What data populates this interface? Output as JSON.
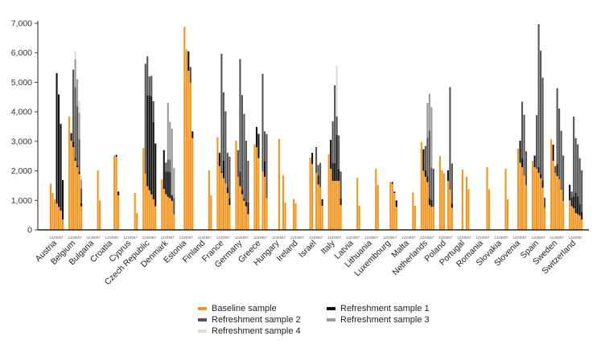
{
  "chart_data": {
    "type": "bar",
    "stacked": true,
    "title": "",
    "xlabel": "",
    "ylabel": "",
    "ylim": [
      0,
      7000
    ],
    "yticks": [
      0,
      1000,
      2000,
      3000,
      4000,
      5000,
      6000,
      7000
    ],
    "ytick_labels": [
      "0",
      "1,000",
      "2,000",
      "3,000",
      "4,000",
      "5,000",
      "6,000",
      "7,000"
    ],
    "grid": false,
    "legend_position": "bottom",
    "wave_labels": [
      "1",
      "2",
      "3",
      "4",
      "5",
      "6",
      "7"
    ],
    "series": [
      {
        "name": "Baseline sample",
        "color": "#f7941d"
      },
      {
        "name": "Refreshment sample 1",
        "color": "#111111"
      },
      {
        "name": "Refreshment sample 2",
        "color": "#555555"
      },
      {
        "name": "Refreshment sample 3",
        "color": "#9a9a9a"
      },
      {
        "name": "Refreshment sample 4",
        "color": "#dcdcdc"
      }
    ],
    "countries": [
      {
        "name": "Austria",
        "waves": [
          [
            1570
          ],
          [
            1250
          ],
          [
            1030
          ],
          [
            890,
            4420
          ],
          [
            780,
            3810
          ],
          [
            650,
            2940
          ],
          [
            350,
            1340
          ]
        ]
      },
      {
        "name": "Belgium",
        "waves": [
          [
            3840
          ],
          [
            3020,
            260
          ],
          [
            2800,
            200,
            2430
          ],
          [
            2340,
            100,
            2400,
            950,
            275
          ],
          [
            2120,
            60,
            2000,
            930
          ],
          [
            1890,
            80,
            1100,
            900,
            400
          ],
          [
            800,
            100,
            500,
            300,
            150
          ]
        ]
      },
      {
        "name": "Bulgaria",
        "waves": [
          null,
          null,
          null,
          null,
          null,
          [
            2020
          ],
          [
            1000
          ]
        ]
      },
      {
        "name": "Croatia",
        "waves": [
          null,
          null,
          null,
          null,
          [
            2520
          ],
          [
            2480,
            60
          ],
          [
            1170,
            130
          ]
        ]
      },
      {
        "name": "Cyprus",
        "waves": [
          null,
          null,
          null,
          null,
          null,
          [
            1250
          ],
          [
            570
          ]
        ]
      },
      {
        "name": "Czech Republic",
        "waves": [
          [
            2770
          ],
          [
            1900,
            0,
            3730
          ],
          [
            1480,
            3080,
            1320
          ],
          [
            1340,
            3220,
            640
          ],
          [
            1200,
            3320,
            700
          ],
          [
            1030,
            2630,
            700
          ],
          [
            800,
            2130
          ]
        ]
      },
      {
        "name": "Denmark",
        "waves": [
          [
            1710
          ],
          [
            1390,
            1310
          ],
          [
            1210,
            770,
            300
          ],
          [
            1120,
            860,
            410,
            1910
          ],
          [
            1070,
            900,
            400,
            1290
          ],
          [
            980,
            200,
            0,
            2250
          ],
          [
            530,
            0,
            550,
            1020
          ]
        ]
      },
      {
        "name": "Estonia",
        "waves": [
          null,
          null,
          [
            6880
          ],
          [
            6110
          ],
          [
            5390,
            660
          ],
          [
            4980,
            0,
            540
          ],
          [
            3110,
            230
          ]
        ]
      },
      {
        "name": "Finland",
        "waves": [
          null,
          null,
          null,
          null,
          null,
          [
            2020
          ],
          [
            1170
          ]
        ]
      },
      {
        "name": "France",
        "waves": [
          [
            3140
          ],
          [
            2160,
            450
          ],
          [
            1930,
            50,
            3990
          ],
          [
            1750,
            600,
            2310
          ],
          [
            1570,
            0,
            2450
          ],
          [
            1250,
            180,
            1180
          ],
          [
            840,
            230,
            1410
          ]
        ]
      },
      {
        "name": "Germany",
        "waves": [
          [
            3020
          ],
          [
            1800,
            0,
            900
          ],
          [
            1480,
            500,
            3810
          ],
          [
            1210,
            140,
            3220
          ],
          [
            980,
            100,
            2850
          ],
          [
            800,
            140,
            2080
          ],
          [
            530,
            400,
            1410
          ]
        ]
      },
      {
        "name": "Greece",
        "waves": [
          [
            2900
          ],
          [
            2800,
            690
          ],
          [
            2430,
            820
          ],
          null,
          [
            1980,
            0,
            3310
          ],
          [
            1800,
            530,
            1010
          ],
          [
            1070,
            0,
            2180
          ]
        ]
      },
      {
        "name": "Hungary",
        "waves": [
          null,
          null,
          null,
          [
            3080
          ],
          null,
          [
            1850
          ],
          [
            930
          ]
        ]
      },
      {
        "name": "Ireland",
        "waves": [
          null,
          [
            1050
          ],
          [
            900
          ],
          null,
          null,
          null,
          null
        ]
      },
      {
        "name": "Israel",
        "waves": [
          [
            2450
          ],
          [
            2230,
            380
          ],
          null,
          [
            1930,
            0,
            880
          ],
          [
            1540,
            300,
            360
          ],
          [
            1450,
            0,
            820
          ],
          [
            820,
            220
          ]
        ]
      },
      {
        "name": "Italy",
        "waves": [
          [
            2570
          ],
          [
            2070,
            980
          ],
          [
            1660,
            600,
            1420
          ],
          [
            1660,
            600,
            2640
          ],
          [
            1660,
            1560,
            620,
            0,
            1730
          ],
          [
            1660,
            400,
            1140
          ],
          [
            840,
            230,
            910
          ]
        ]
      },
      {
        "name": "Latvia",
        "waves": [
          null,
          null,
          null,
          null,
          null,
          [
            1760
          ],
          [
            820
          ]
        ]
      },
      {
        "name": "Lithuania",
        "waves": [
          null,
          null,
          null,
          null,
          null,
          [
            2070
          ],
          [
            1530
          ]
        ]
      },
      {
        "name": "Luxembourg",
        "waves": [
          null,
          null,
          null,
          [
            1620
          ],
          [
            1570,
            50
          ],
          [
            1250,
            50
          ],
          [
            780,
            220
          ]
        ]
      },
      {
        "name": "Malta",
        "waves": [
          null,
          null,
          null,
          null,
          null,
          [
            1270
          ],
          [
            820
          ]
        ]
      },
      {
        "name": "Netherlands",
        "waves": [
          [
            2980
          ],
          [
            2000,
            730
          ],
          [
            1800,
            220,
            820
          ],
          [
            1620,
            200,
            1300,
            1180
          ],
          [
            840,
            230,
            2300,
            1240
          ],
          [
            780,
            230,
            1100,
            2050
          ],
          [
            780,
            0,
            1290
          ]
        ]
      },
      {
        "name": "Poland",
        "waves": [
          [
            2500
          ],
          [
            2020
          ],
          [
            1920
          ],
          null,
          [
            1660,
            360
          ],
          [
            1360,
            0,
            3480
          ],
          [
            750,
            140,
            1360
          ]
        ]
      },
      {
        "name": "Portugal",
        "waves": [
          null,
          null,
          [
            2040
          ],
          null,
          [
            1800
          ],
          [
            1380
          ],
          null
        ]
      },
      {
        "name": "Romania",
        "waves": [
          null,
          null,
          null,
          null,
          null,
          [
            2130
          ],
          [
            1380
          ]
        ]
      },
      {
        "name": "Slovakia",
        "waves": [
          null,
          null,
          null,
          null,
          null,
          [
            2070
          ],
          [
            1040
          ]
        ]
      },
      {
        "name": "Slovenia",
        "waves": [
          null,
          null,
          [
            2750
          ],
          [
            2270,
            750
          ],
          [
            2120,
            300,
            1920
          ],
          [
            1840,
            0,
            2060
          ],
          [
            1510,
            0,
            1150
          ]
        ]
      },
      {
        "name": "Spain",
        "waves": [
          [
            2340
          ],
          [
            2120,
            400
          ],
          [
            2070,
            0,
            1820
          ],
          [
            1930,
            200,
            4840
          ],
          [
            1750,
            150,
            4170
          ],
          [
            1430,
            250,
            3480
          ],
          [
            750,
            0,
            340
          ]
        ]
      },
      {
        "name": "Sweden",
        "waves": [
          [
            3070
          ],
          [
            2340,
            550
          ],
          [
            1930,
            0,
            230
          ],
          [
            1820,
            400,
            2580
          ],
          [
            1710,
            0,
            2400
          ],
          [
            1360,
            0,
            2000
          ],
          [
            980,
            0,
            1540
          ]
        ]
      },
      {
        "name": "Switzerland",
        "waves": [
          [
            1000,
            530
          ],
          [
            800,
            300,
            200
          ],
          [
            730,
            400,
            2710
          ],
          [
            570,
            700,
            1840
          ],
          [
            530,
            600,
            1770
          ],
          [
            480,
            400,
            1550
          ],
          [
            350,
            270,
            1400
          ]
        ]
      }
    ]
  }
}
